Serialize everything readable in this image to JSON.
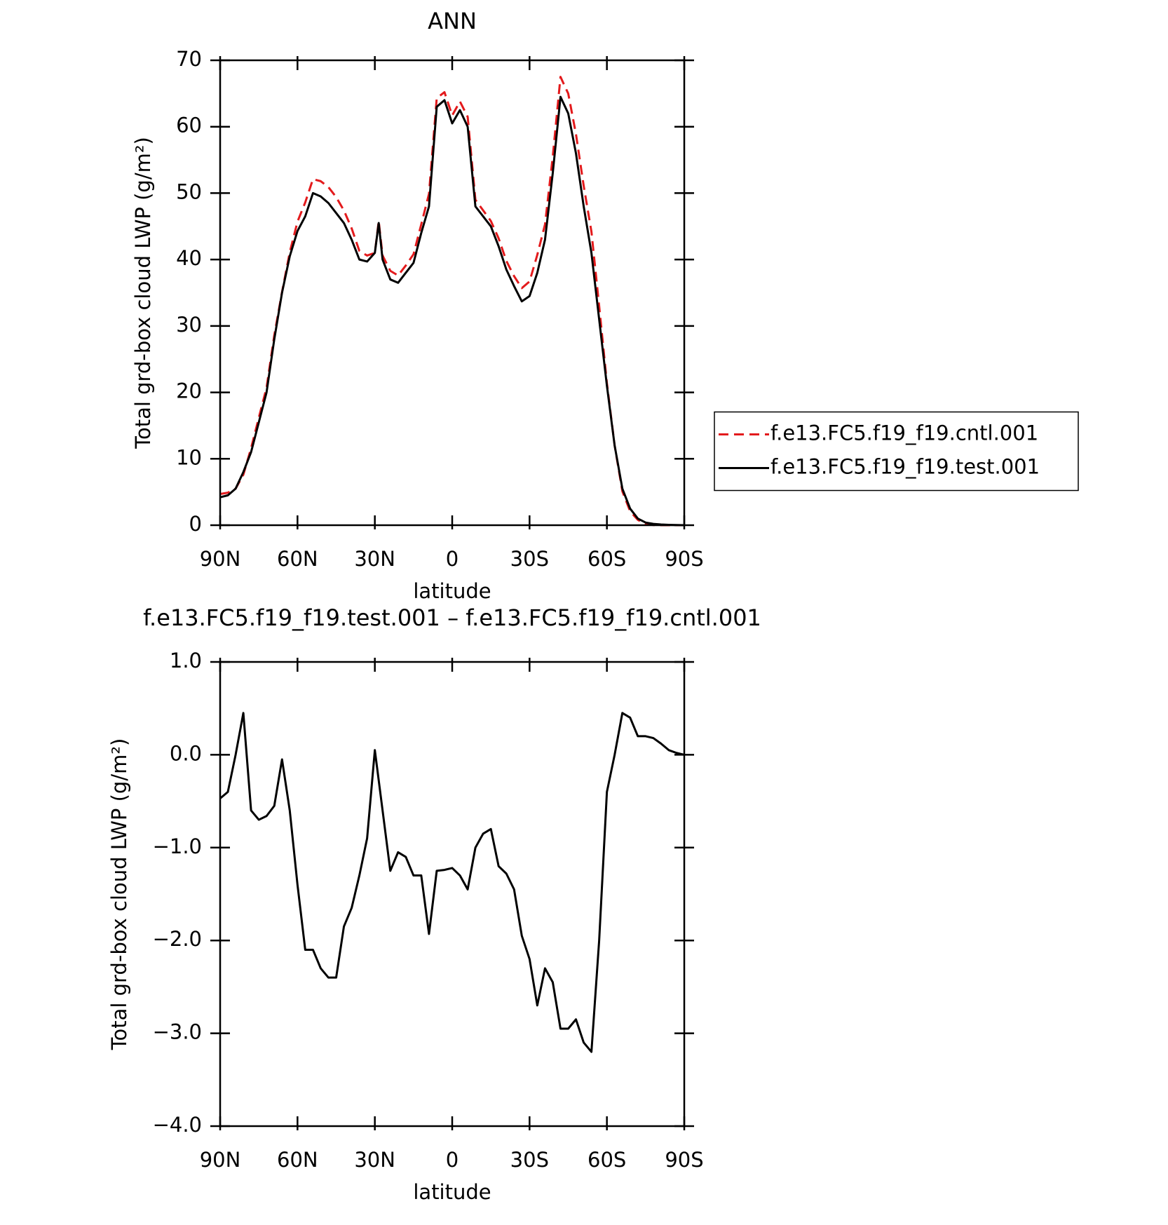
{
  "chart_data": [
    {
      "type": "line",
      "title": "ANN",
      "xlabel": "latitude",
      "ylabel": "Total grd-box cloud LWP (g/m²)",
      "x": [
        90,
        87,
        84,
        81,
        78,
        75,
        72,
        69,
        66,
        63,
        60,
        57,
        54,
        51,
        48,
        45,
        42,
        39,
        36,
        33,
        30,
        28.5,
        27,
        24,
        21,
        18,
        15,
        12,
        9,
        6,
        3,
        0,
        -3,
        -6,
        -9,
        -12,
        -15,
        -18,
        -21,
        -24,
        -27,
        -30,
        -33,
        -36,
        -39,
        -42,
        -45,
        -48,
        -51,
        -54,
        -57,
        -60,
        -63,
        -66,
        -69,
        -72,
        -75,
        -78,
        -81,
        -84,
        -87,
        -90
      ],
      "series": [
        {
          "name": "f.e13.FC5.f19_f19.cntl.001",
          "color": "#e31a1c",
          "dash": true,
          "values": [
            4.7,
            4.9,
            5.5,
            7.6,
            11.6,
            16.2,
            20.7,
            28.6,
            35.1,
            41.1,
            45.7,
            48.6,
            52.1,
            51.8,
            50.9,
            49.4,
            47.4,
            44.7,
            41.3,
            40.6,
            41,
            45.8,
            40.6,
            38.3,
            37.6,
            39.1,
            40.8,
            45.3,
            49.9,
            64.3,
            65.2,
            61.7,
            63.8,
            61.5,
            49,
            47.4,
            45.8,
            43.2,
            39.8,
            37.5,
            35.7,
            36.7,
            40.7,
            45.3,
            55.5,
            67.5,
            65,
            58.9,
            51.1,
            44.2,
            33,
            21.4,
            12,
            5.1,
            2.1,
            0.8,
            0.2,
            0.02,
            0,
            0,
            0,
            0
          ]
        },
        {
          "name": "f.e13.FC5.f19_f19.test.001",
          "color": "#000000",
          "dash": false,
          "values": [
            4.2,
            4.5,
            5.5,
            8,
            11,
            15.5,
            20,
            28,
            35,
            40.5,
            44.3,
            46.5,
            50,
            49.5,
            48.5,
            47,
            45.5,
            43,
            40,
            39.7,
            41,
            45.5,
            40,
            37,
            36.5,
            38,
            39.5,
            44,
            48,
            63,
            64,
            60.5,
            62.5,
            60,
            48,
            46.5,
            45,
            42,
            38.5,
            36,
            33.7,
            34.5,
            38,
            43,
            53,
            64.5,
            62,
            56,
            48,
            41,
            31,
            21,
            12,
            5.5,
            2.5,
            1,
            0.4,
            0.2,
            0.1,
            0.05,
            0.02,
            0
          ]
        }
      ],
      "xlim": [
        90,
        -90
      ],
      "xticks": [
        {
          "value": 90,
          "label": "90N"
        },
        {
          "value": 60,
          "label": "60N"
        },
        {
          "value": 30,
          "label": "30N"
        },
        0,
        {
          "value": -30,
          "label": "30S"
        },
        {
          "value": -60,
          "label": "60S"
        },
        {
          "value": -90,
          "label": "90S"
        }
      ],
      "ylim": [
        0,
        70
      ],
      "yticks": [
        0,
        10,
        20,
        30,
        40,
        50,
        60,
        70
      ],
      "legend": "right"
    },
    {
      "type": "line",
      "title": "f.e13.FC5.f19_f19.test.001 – f.e13.FC5.f19_f19.cntl.001",
      "xlabel": "latitude",
      "ylabel": "Total grd-box cloud LWP (g/m²)",
      "x": [
        90,
        87,
        84,
        81,
        78,
        75,
        72,
        69,
        66,
        63,
        60,
        57,
        54,
        51,
        48,
        45,
        42,
        39,
        36,
        33,
        30,
        27,
        24,
        21,
        18,
        15,
        12,
        9,
        6,
        3,
        0,
        -3,
        -6,
        -9,
        -12,
        -15,
        -18,
        -21,
        -24,
        -27,
        -30,
        -33,
        -36,
        -39,
        -42,
        -45,
        -48,
        -51,
        -54,
        -57,
        -60,
        -63,
        -66,
        -69,
        -72,
        -75,
        -78,
        -81,
        -84,
        -87,
        -90
      ],
      "series": [
        {
          "color": "#000000",
          "dash": false,
          "values": [
            -0.47,
            -0.4,
            0,
            0.45,
            -0.6,
            -0.7,
            -0.66,
            -0.55,
            -0.05,
            -0.6,
            -1.4,
            -2.1,
            -2.1,
            -2.3,
            -2.4,
            -2.4,
            -1.85,
            -1.65,
            -1.3,
            -0.9,
            0.05,
            -0.6,
            -1.25,
            -1.05,
            -1.1,
            -1.3,
            -1.3,
            -1.93,
            -1.25,
            -1.24,
            -1.22,
            -1.3,
            -1.45,
            -1,
            -0.85,
            -0.8,
            -1.2,
            -1.28,
            -1.45,
            -1.95,
            -2.2,
            -2.7,
            -2.3,
            -2.45,
            -2.95,
            -2.95,
            -2.85,
            -3.1,
            -3.2,
            -2,
            -0.4,
            0,
            0.45,
            0.4,
            0.2,
            0.2,
            0.18,
            0.12,
            0.05,
            0.02,
            0
          ]
        }
      ],
      "xlim": [
        90,
        -90
      ],
      "xticks": [
        {
          "value": 90,
          "label": "90N"
        },
        {
          "value": 60,
          "label": "60N"
        },
        {
          "value": 30,
          "label": "30N"
        },
        0,
        {
          "value": -30,
          "label": "30S"
        },
        {
          "value": -60,
          "label": "60S"
        },
        {
          "value": -90,
          "label": "90S"
        }
      ],
      "ylim": [
        -4,
        1
      ],
      "yticks": [
        {
          "value": -4,
          "label": "−4.0"
        },
        {
          "value": -3,
          "label": "−3.0"
        },
        {
          "value": -2,
          "label": "−2.0"
        },
        {
          "value": -1,
          "label": "−1.0"
        },
        {
          "value": 0,
          "label": "0.0"
        },
        {
          "value": 1,
          "label": "1.0"
        }
      ]
    }
  ]
}
